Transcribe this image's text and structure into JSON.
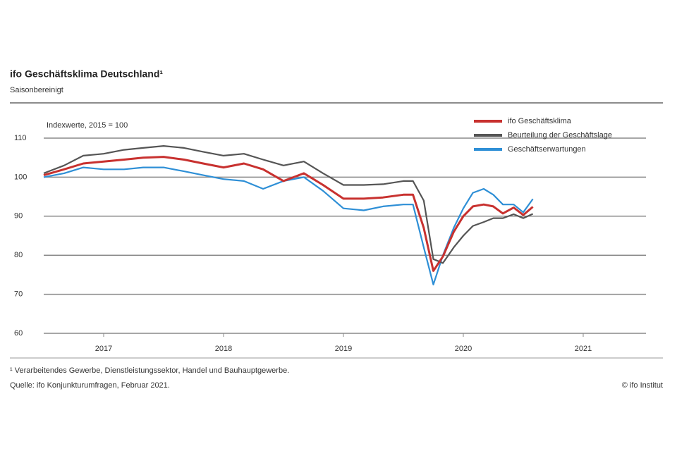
{
  "chart_data": {
    "type": "line",
    "title": "ifo Geschäftsklima Deutschland¹",
    "subtitle": "Saisonbereinigt",
    "annotation": "Indexwerte, 2015 = 100",
    "x": [
      2017.0,
      2017.17,
      2017.33,
      2017.5,
      2017.67,
      2017.83,
      2018.0,
      2018.17,
      2018.33,
      2018.5,
      2018.67,
      2018.83,
      2019.0,
      2019.17,
      2019.33,
      2019.5,
      2019.67,
      2019.83,
      2020.0,
      2020.08,
      2020.17,
      2020.25,
      2020.33,
      2020.42,
      2020.5,
      2020.58,
      2020.67,
      2020.75,
      2020.83,
      2020.92,
      2021.0,
      2021.08
    ],
    "series": [
      {
        "name": "ifo Geschäftsklima",
        "color": "#c8312f",
        "values": [
          100.5,
          102,
          103.5,
          104,
          104.5,
          105,
          105.2,
          104.5,
          103.5,
          102.5,
          103.5,
          102,
          99,
          101,
          98,
          94.5,
          94.5,
          94.8,
          95.5,
          95.5,
          87,
          76,
          79.7,
          86,
          90,
          92.5,
          93,
          92.5,
          90.7,
          92.2,
          90.3,
          92.4
        ]
      },
      {
        "name": "Beurteilung der Geschäftslage",
        "color": "#555555",
        "values": [
          101,
          103,
          105.5,
          106,
          107,
          107.5,
          108,
          107.5,
          106.5,
          105.5,
          106,
          104.5,
          103,
          104,
          101,
          98,
          98,
          98.2,
          99,
          99,
          94,
          79,
          78,
          82,
          85,
          87.5,
          88.5,
          89.5,
          89.5,
          90.5,
          89.5,
          90.6
        ]
      },
      {
        "name": "Geschäftserwartungen",
        "color": "#2e8fd6",
        "values": [
          100,
          101,
          102.5,
          102,
          102,
          102.5,
          102.5,
          101.5,
          100.5,
          99.5,
          99,
          97,
          99,
          100,
          96.5,
          92,
          91.5,
          92.5,
          93,
          93,
          82,
          72.5,
          80,
          87,
          92,
          96,
          97,
          95.5,
          93,
          93,
          91,
          94.4
        ]
      }
    ],
    "xlim": [
      2017,
      2022
    ],
    "xticks": [
      {
        "value": 2017.5,
        "label": "2017"
      },
      {
        "value": 2018.5,
        "label": "2018"
      },
      {
        "value": 2019.5,
        "label": "2019"
      },
      {
        "value": 2020.5,
        "label": "2020"
      },
      {
        "value": 2021.5,
        "label": "2021"
      }
    ],
    "ylim": [
      60,
      110
    ],
    "yticks": [
      60,
      70,
      80,
      90,
      100,
      110
    ],
    "grid": true,
    "legend": "top-right",
    "footnote": "¹ Verarbeitendes Gewerbe, Dienstleistungssektor, Handel und Bauhauptgewerbe.",
    "source": "Quelle: ifo Konjunkturumfragen, Februar 2021.",
    "copyright": "© ifo Institut"
  }
}
